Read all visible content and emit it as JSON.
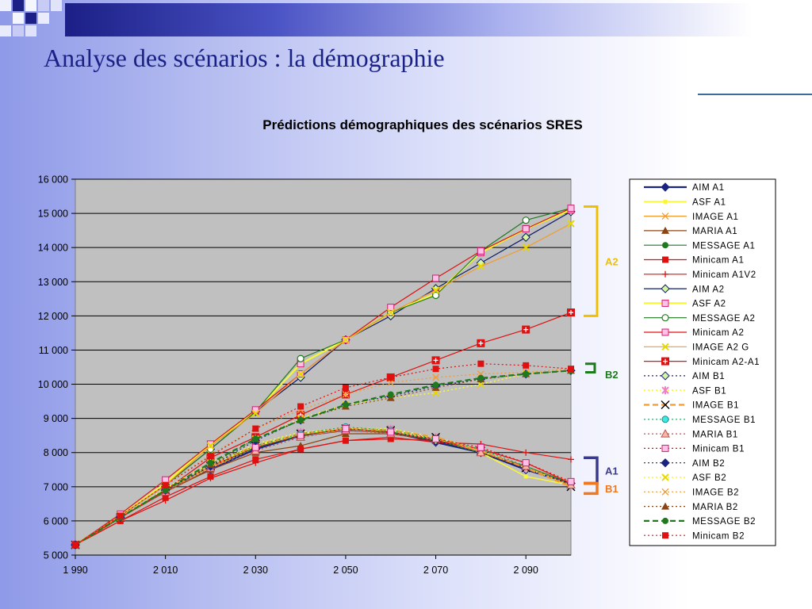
{
  "slide": {
    "title": "Analyse des scénarios : la démographie"
  },
  "chart_data": {
    "type": "line",
    "title": "Prédictions démographiques des scénarios SRES",
    "xlabel": "",
    "ylabel": "",
    "x": [
      1990,
      2000,
      2010,
      2020,
      2030,
      2040,
      2050,
      2060,
      2070,
      2080,
      2090,
      2100
    ],
    "xlim": [
      1990,
      2100
    ],
    "ylim": [
      5000,
      16000
    ],
    "x_ticks": [
      1990,
      2010,
      2030,
      2050,
      2070,
      2090
    ],
    "x_tick_labels": [
      "1 990",
      "2 010",
      "2 030",
      "2 050",
      "2 070",
      "2 090"
    ],
    "y_ticks": [
      5000,
      6000,
      7000,
      8000,
      9000,
      10000,
      11000,
      12000,
      13000,
      14000,
      15000,
      16000
    ],
    "y_tick_labels": [
      "5 000",
      "6 000",
      "7 000",
      "8 000",
      "9 000",
      "10 000",
      "11 000",
      "12 000",
      "13 000",
      "14 000",
      "15 000",
      "16 000"
    ],
    "grid": "horizontal",
    "plot_background": "#c0c0c0",
    "legend_position": "right",
    "series": [
      {
        "name": "AIM A1",
        "color": "#1a237e",
        "dash": "solid",
        "marker": "diamond",
        "width": 2.2,
        "values": [
          5300,
          6100,
          6900,
          7500,
          8100,
          8500,
          8650,
          8600,
          8300,
          8000,
          7500,
          7100
        ]
      },
      {
        "name": "ASF A1",
        "color": "#f7f733",
        "dash": "solid",
        "marker": "square-small",
        "width": 1.6,
        "values": [
          5300,
          6100,
          6900,
          7600,
          8200,
          8550,
          8700,
          8650,
          8400,
          8000,
          7300,
          7050
        ]
      },
      {
        "name": "IMAGE A1",
        "color": "#f29a30",
        "dash": "solid",
        "marker": "x",
        "width": 1.2,
        "values": [
          5300,
          6100,
          6850,
          7550,
          8150,
          8500,
          8650,
          8600,
          8350,
          8050,
          7550,
          7150
        ]
      },
      {
        "name": "MARIA A1",
        "color": "#8b4513",
        "dash": "solid",
        "marker": "triangle",
        "width": 1.2,
        "values": [
          5300,
          6100,
          6850,
          7500,
          8000,
          8200,
          8550,
          8550,
          8350,
          8000,
          7550,
          7050
        ]
      },
      {
        "name": "MESSAGE A1",
        "color": "#1f7a1f",
        "dash": "solid",
        "marker": "circle",
        "width": 1.2,
        "values": [
          5300,
          6100,
          6900,
          7600,
          8150,
          8500,
          8700,
          8600,
          8350,
          8000,
          7600,
          7100
        ]
      },
      {
        "name": "Minicam A1",
        "color": "#e01010",
        "dash": "solid",
        "marker": "square",
        "width": 1.2,
        "values": [
          5300,
          6000,
          6700,
          7300,
          7800,
          8100,
          8350,
          8400,
          8350,
          8100,
          7700,
          7100
        ]
      },
      {
        "name": "Minicam A1V2",
        "color": "#e01010",
        "dash": "solid",
        "marker": "plus",
        "width": 1.2,
        "values": [
          5300,
          6000,
          6600,
          7250,
          7700,
          8100,
          8350,
          8450,
          8300,
          8250,
          8000,
          7800
        ]
      },
      {
        "name": "AIM A2",
        "color": "#0d1a66",
        "dash": "solid",
        "marker": "diamond-light",
        "width": 1.2,
        "values": [
          5300,
          6150,
          7050,
          8100,
          9200,
          10200,
          11300,
          12000,
          12800,
          13550,
          14300,
          15050
        ]
      },
      {
        "name": "ASF A2",
        "color": "#f7f733",
        "dash": "solid",
        "marker": "square-pink",
        "width": 2.2,
        "values": [
          5300,
          6150,
          7100,
          8250,
          9200,
          10600,
          11300,
          12100,
          12650,
          13850,
          14550,
          15100
        ]
      },
      {
        "name": "MESSAGE A2",
        "color": "#1f7a1f",
        "dash": "solid",
        "marker": "circle-open",
        "width": 1.2,
        "values": [
          5300,
          6150,
          7050,
          8100,
          9200,
          10750,
          11300,
          12100,
          12600,
          13900,
          14800,
          15150
        ]
      },
      {
        "name": "Minicam A2",
        "color": "#e01010",
        "dash": "solid",
        "marker": "square-pink",
        "width": 1.2,
        "values": [
          5300,
          6200,
          7200,
          8250,
          9250,
          10300,
          11300,
          12250,
          13100,
          13900,
          14550,
          15150
        ]
      },
      {
        "name": "IMAGE A2 G",
        "color": "#f29a30",
        "dash": "solid",
        "marker": "x-yellow",
        "width": 1.2,
        "values": [
          5300,
          6150,
          7050,
          8200,
          9150,
          10300,
          11300,
          12100,
          12750,
          13450,
          14000,
          14700
        ]
      },
      {
        "name": "Minicam A2-A1",
        "color": "#e01010",
        "dash": "solid",
        "marker": "plus-box",
        "width": 1.2,
        "values": [
          5300,
          6100,
          6900,
          7850,
          8450,
          9100,
          9700,
          10200,
          10700,
          11200,
          11600,
          12100
        ]
      },
      {
        "name": "AIM B1",
        "color": "#1a237e",
        "dash": "dotted",
        "marker": "diamond-light",
        "width": 1.2,
        "values": [
          5300,
          6100,
          6900,
          7600,
          8100,
          8500,
          8700,
          8600,
          8350,
          8000,
          7500,
          7100
        ]
      },
      {
        "name": "ASF B1",
        "color": "#f7f733",
        "dash": "dotted",
        "marker": "star-pink",
        "width": 1.6,
        "values": [
          5300,
          6100,
          6950,
          7650,
          8250,
          8600,
          8700,
          8700,
          8450,
          8050,
          7550,
          7050
        ]
      },
      {
        "name": "IMAGE B1",
        "color": "#f29a30",
        "dash": "dashed",
        "marker": "x-big",
        "width": 2.2,
        "values": [
          5300,
          6100,
          6900,
          7600,
          8200,
          8550,
          8700,
          8650,
          8450,
          8050,
          7550,
          7000
        ]
      },
      {
        "name": "MESSAGE B1",
        "color": "#19a85a",
        "dash": "dotted",
        "marker": "circle-cyan",
        "width": 1.2,
        "values": [
          5300,
          6100,
          6900,
          7650,
          8200,
          8550,
          8750,
          8650,
          8400,
          8100,
          7600,
          7100
        ]
      },
      {
        "name": "MARIA B1",
        "color": "#c0504d",
        "dash": "dotted",
        "marker": "triangle-open",
        "width": 1.2,
        "values": [
          5300,
          6100,
          6850,
          7550,
          8050,
          8450,
          8650,
          8550,
          8400,
          8000,
          7600,
          7050
        ]
      },
      {
        "name": "Minicam B1",
        "color": "#e01010",
        "dash": "dotted",
        "marker": "square-pink",
        "width": 1.2,
        "values": [
          5300,
          6100,
          6900,
          7600,
          8150,
          8500,
          8700,
          8600,
          8400,
          8150,
          7700,
          7150
        ]
      },
      {
        "name": "AIM B2",
        "color": "#1a237e",
        "dash": "dotted",
        "marker": "diamond",
        "width": 1.2,
        "values": [
          5300,
          6100,
          6900,
          7600,
          8350,
          8950,
          9400,
          9650,
          9950,
          10150,
          10300,
          10400
        ]
      },
      {
        "name": "ASF B2",
        "color": "#f7f733",
        "dash": "dotted",
        "marker": "x-yellow",
        "width": 1.6,
        "values": [
          5300,
          6100,
          6950,
          7700,
          8400,
          9000,
          9400,
          9600,
          9750,
          10000,
          10300,
          10400
        ]
      },
      {
        "name": "IMAGE B2",
        "color": "#f29a30",
        "dash": "dotted",
        "marker": "x",
        "width": 1.2,
        "values": [
          5300,
          6150,
          7050,
          7950,
          8700,
          9250,
          9700,
          10050,
          10200,
          10300,
          10350,
          10450
        ]
      },
      {
        "name": "MARIA B2",
        "color": "#8b4513",
        "dash": "dotted",
        "marker": "triangle",
        "width": 1.2,
        "values": [
          5300,
          6100,
          6900,
          7650,
          8400,
          8950,
          9350,
          9600,
          9900,
          10150,
          10300,
          10400
        ]
      },
      {
        "name": "MESSAGE B2",
        "color": "#1f7a1f",
        "dash": "dashed",
        "marker": "circle",
        "width": 2.2,
        "values": [
          5300,
          6100,
          6900,
          7700,
          8400,
          8950,
          9400,
          9700,
          9980,
          10180,
          10300,
          10400
        ]
      },
      {
        "name": "Minicam B2",
        "color": "#e01010",
        "dash": "dotted",
        "marker": "square",
        "width": 1.2,
        "values": [
          5300,
          6150,
          7050,
          7900,
          8700,
          9350,
          9900,
          10200,
          10450,
          10600,
          10550,
          10450
        ]
      }
    ],
    "annotations": [
      {
        "label": "A2",
        "color": "#f0c000",
        "bracket": [
          12000,
          15200
        ],
        "shape": "bracket"
      },
      {
        "label": "B2",
        "color": "#1f7a1f",
        "bracket": [
          10350,
          10600
        ],
        "shape": "hook"
      },
      {
        "label": "A1",
        "color": "#3a3a8c",
        "bracket": [
          7100,
          7850
        ],
        "shape": "bracket"
      },
      {
        "label": "B1",
        "color": "#f07820",
        "bracket": [
          6800,
          7100
        ],
        "shape": "bracket"
      }
    ]
  }
}
